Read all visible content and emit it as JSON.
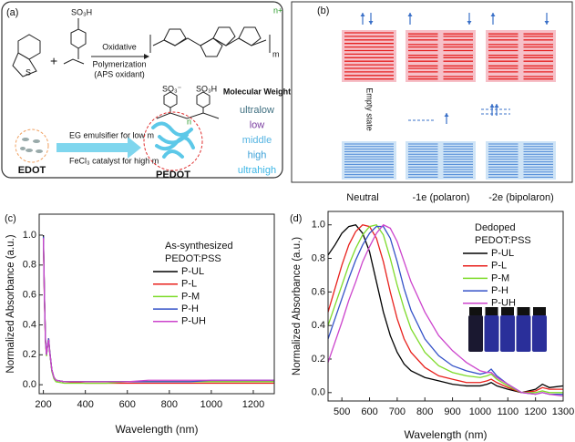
{
  "panels": {
    "a": {
      "label": "(a)",
      "sulfonic": "SO₃H",
      "plus": "+",
      "step1": "Oxidative",
      "step2": "Polymerization",
      "step3": "(APS oxidant)",
      "charge": "n+",
      "m": "m",
      "n": "n",
      "so3a": "SO₃⁻",
      "so3b": "SO₃H",
      "mw_title": "Molecular Weight",
      "mw": [
        {
          "text": "ultralow",
          "color": "#3f6f80"
        },
        {
          "text": "low",
          "color": "#7a3da0"
        },
        {
          "text": "middle",
          "color": "#55b4e2"
        },
        {
          "text": "high",
          "color": "#3aa0d8"
        },
        {
          "text": "ultrahigh",
          "color": "#3cb6e6"
        }
      ],
      "route1": "EG emulsifier for low m",
      "route2": "FeCl₃ catalyst for high m",
      "monomer": "EDOT",
      "polymer": "PEDOT"
    },
    "b": {
      "label": "(b)",
      "empty": "Empty state",
      "states": [
        "Neutral",
        "-1e (polaron)",
        "-2e (bipolaron)"
      ]
    }
  },
  "chart_data": [
    {
      "type": "line",
      "panel_label": "(c)",
      "xlabel": "Wavelength (nm)",
      "ylabel": "Normalized Absorbance (a.u.)",
      "xlim": [
        180,
        1300
      ],
      "ylim": [
        -0.06,
        1.14
      ],
      "xticks": [
        200,
        400,
        600,
        800,
        1000,
        1200
      ],
      "yticks": [
        {
          "value": 0,
          "label": "0.0"
        },
        {
          "value": 0.2,
          "label": "0.2"
        },
        {
          "value": 0.4,
          "label": "0.4"
        },
        {
          "value": 0.6,
          "label": "0.6"
        },
        {
          "value": 0.8,
          "label": "0.8"
        },
        {
          "value": 1,
          "label": "1.0"
        }
      ],
      "legend_title": [
        "As-synthesized",
        "PEDOT:PSS"
      ],
      "x": [
        200,
        205,
        210,
        215,
        220,
        225,
        230,
        240,
        250,
        260,
        300,
        400,
        500,
        600,
        700,
        800,
        900,
        1000,
        1100,
        1200,
        1300
      ],
      "series": [
        {
          "name": "P-UL",
          "color": "#000000",
          "values": [
            1.0,
            0.6,
            0.3,
            0.2,
            0.26,
            0.3,
            0.22,
            0.1,
            0.05,
            0.03,
            0.02,
            0.02,
            0.02,
            0.02,
            0.02,
            0.02,
            0.02,
            0.02,
            0.02,
            0.02,
            0.02
          ]
        },
        {
          "name": "P-L",
          "color": "#e8201c",
          "values": [
            0.98,
            0.58,
            0.29,
            0.2,
            0.27,
            0.31,
            0.23,
            0.1,
            0.05,
            0.03,
            0.02,
            0.01,
            0.01,
            0.01,
            0.01,
            0.01,
            0.01,
            0.01,
            0.01,
            0.01,
            0.01
          ]
        },
        {
          "name": "P-M",
          "color": "#7edb2a",
          "values": [
            0.97,
            0.57,
            0.28,
            0.19,
            0.26,
            0.3,
            0.22,
            0.09,
            0.04,
            0.02,
            0.01,
            0.01,
            0.01,
            0.02,
            0.02,
            0.02,
            0.02,
            0.02,
            0.02,
            0.02,
            0.02
          ]
        },
        {
          "name": "P-H",
          "color": "#3452c8",
          "values": [
            0.99,
            0.59,
            0.3,
            0.2,
            0.27,
            0.31,
            0.23,
            0.1,
            0.05,
            0.03,
            0.02,
            0.02,
            0.02,
            0.02,
            0.02,
            0.02,
            0.02,
            0.03,
            0.03,
            0.03,
            0.03
          ]
        },
        {
          "name": "P-UH",
          "color": "#cc44cc",
          "values": [
            0.98,
            0.58,
            0.29,
            0.2,
            0.26,
            0.3,
            0.22,
            0.1,
            0.05,
            0.03,
            0.02,
            0.02,
            0.02,
            0.02,
            0.03,
            0.03,
            0.03,
            0.03,
            0.03,
            0.03,
            0.03
          ]
        }
      ]
    },
    {
      "type": "line",
      "panel_label": "(d)",
      "xlabel": "Wavelength (nm)",
      "ylabel": "Normalized Absorbance (a.u.)",
      "xlim": [
        450,
        1300
      ],
      "ylim": [
        -0.05,
        1.08
      ],
      "xticks": [
        500,
        600,
        700,
        800,
        900,
        1000,
        1100,
        1200,
        1300
      ],
      "yticks": [
        {
          "value": 0,
          "label": "0.0"
        },
        {
          "value": 0.2,
          "label": "0.2"
        },
        {
          "value": 0.4,
          "label": "0.4"
        },
        {
          "value": 0.6,
          "label": "0.6"
        },
        {
          "value": 0.8,
          "label": "0.8"
        },
        {
          "value": 1,
          "label": "1.0"
        }
      ],
      "legend_title": [
        "Dedoped",
        "PEDOT:PSS"
      ],
      "x": [
        450,
        475,
        500,
        525,
        550,
        575,
        600,
        625,
        650,
        675,
        700,
        725,
        750,
        800,
        850,
        900,
        950,
        1000,
        1025,
        1040,
        1060,
        1100,
        1150,
        1200,
        1225,
        1250,
        1300
      ],
      "series": [
        {
          "name": "P-UL",
          "color": "#000000",
          "values": [
            0.82,
            0.88,
            0.95,
            0.99,
            1.0,
            0.95,
            0.84,
            0.66,
            0.48,
            0.34,
            0.24,
            0.17,
            0.13,
            0.09,
            0.07,
            0.05,
            0.04,
            0.04,
            0.05,
            0.06,
            0.04,
            0.02,
            0.0,
            0.02,
            0.05,
            0.03,
            0.04
          ]
        },
        {
          "name": "P-L",
          "color": "#e8201c",
          "values": [
            0.48,
            0.62,
            0.76,
            0.88,
            0.96,
            1.0,
            0.99,
            0.92,
            0.78,
            0.6,
            0.44,
            0.32,
            0.24,
            0.15,
            0.1,
            0.08,
            0.06,
            0.06,
            0.07,
            0.08,
            0.06,
            0.03,
            0.0,
            0.01,
            0.03,
            0.02,
            0.02
          ]
        },
        {
          "name": "P-M",
          "color": "#7edb2a",
          "values": [
            0.4,
            0.52,
            0.64,
            0.76,
            0.86,
            0.94,
            0.99,
            1.0,
            0.94,
            0.8,
            0.64,
            0.5,
            0.38,
            0.24,
            0.16,
            0.12,
            0.1,
            0.09,
            0.1,
            0.11,
            0.08,
            0.04,
            0.0,
            0.0,
            0.01,
            0.0,
            0.0
          ]
        },
        {
          "name": "P-H",
          "color": "#3452c8",
          "values": [
            0.32,
            0.44,
            0.56,
            0.68,
            0.79,
            0.88,
            0.95,
            0.99,
            0.99,
            0.92,
            0.78,
            0.62,
            0.49,
            0.32,
            0.22,
            0.16,
            0.13,
            0.11,
            0.12,
            0.14,
            0.1,
            0.05,
            0.0,
            -0.01,
            0.0,
            -0.01,
            -0.01
          ]
        },
        {
          "name": "P-UH",
          "color": "#cc44cc",
          "values": [
            0.18,
            0.3,
            0.42,
            0.55,
            0.66,
            0.78,
            0.87,
            0.95,
            1.0,
            0.98,
            0.9,
            0.78,
            0.66,
            0.48,
            0.34,
            0.25,
            0.18,
            0.13,
            0.12,
            0.12,
            0.09,
            0.05,
            0.0,
            -0.01,
            0.0,
            -0.01,
            -0.02
          ]
        }
      ]
    }
  ]
}
